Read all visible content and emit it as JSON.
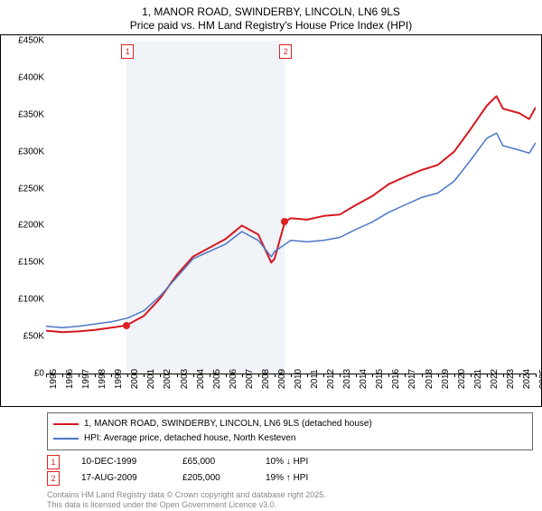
{
  "title_line1": "1, MANOR ROAD, SWINDERBY, LINCOLN, LN6 9LS",
  "title_line2": "Price paid vs. HM Land Registry's House Price Index (HPI)",
  "chart": {
    "type": "line",
    "background_color": "#ffffff",
    "shaded_bg_color": "#f0f3f8",
    "x": {
      "min": 1995,
      "max": 2025,
      "step": 1
    },
    "y": {
      "min": 0,
      "max": 450000,
      "step": 50000,
      "ticks": [
        "£0",
        "£50K",
        "£100K",
        "£150K",
        "£200K",
        "£250K",
        "£300K",
        "£350K",
        "£400K",
        "£450K"
      ]
    },
    "series": [
      {
        "name": "1, MANOR ROAD, SWINDERBY, LINCOLN, LN6 9LS (detached house)",
        "color": "#d6181f",
        "line_width": 2,
        "data": [
          [
            1995,
            58000
          ],
          [
            1996,
            56000
          ],
          [
            1997,
            57000
          ],
          [
            1998,
            59000
          ],
          [
            1999,
            62000
          ],
          [
            1999.95,
            65000
          ],
          [
            2000,
            66000
          ],
          [
            2001,
            78000
          ],
          [
            2002,
            102000
          ],
          [
            2003,
            133000
          ],
          [
            2004,
            158000
          ],
          [
            2005,
            170000
          ],
          [
            2006,
            182000
          ],
          [
            2007,
            200000
          ],
          [
            2008,
            188000
          ],
          [
            2008.8,
            150000
          ],
          [
            2009,
            155000
          ],
          [
            2009.63,
            205000
          ],
          [
            2010,
            210000
          ],
          [
            2011,
            208000
          ],
          [
            2012,
            213000
          ],
          [
            2013,
            215000
          ],
          [
            2014,
            228000
          ],
          [
            2015,
            240000
          ],
          [
            2016,
            256000
          ],
          [
            2017,
            266000
          ],
          [
            2018,
            275000
          ],
          [
            2019,
            282000
          ],
          [
            2020,
            300000
          ],
          [
            2021,
            330000
          ],
          [
            2022,
            362000
          ],
          [
            2022.6,
            375000
          ],
          [
            2023,
            358000
          ],
          [
            2024,
            352000
          ],
          [
            2024.6,
            344000
          ],
          [
            2025,
            360000
          ]
        ]
      },
      {
        "name": "HPI: Average price, detached house, North Kesteven",
        "color": "#4a77c4",
        "line_width": 1.5,
        "data": [
          [
            1995,
            64000
          ],
          [
            1996,
            62000
          ],
          [
            1997,
            64000
          ],
          [
            1998,
            67000
          ],
          [
            1999,
            70000
          ],
          [
            2000,
            75000
          ],
          [
            2001,
            85000
          ],
          [
            2002,
            105000
          ],
          [
            2003,
            130000
          ],
          [
            2004,
            155000
          ],
          [
            2005,
            165000
          ],
          [
            2006,
            175000
          ],
          [
            2007,
            192000
          ],
          [
            2008,
            180000
          ],
          [
            2008.8,
            158000
          ],
          [
            2009,
            165000
          ],
          [
            2010,
            180000
          ],
          [
            2011,
            178000
          ],
          [
            2012,
            180000
          ],
          [
            2013,
            184000
          ],
          [
            2014,
            195000
          ],
          [
            2015,
            205000
          ],
          [
            2016,
            218000
          ],
          [
            2017,
            228000
          ],
          [
            2018,
            238000
          ],
          [
            2019,
            244000
          ],
          [
            2020,
            260000
          ],
          [
            2021,
            288000
          ],
          [
            2022,
            318000
          ],
          [
            2022.6,
            325000
          ],
          [
            2023,
            308000
          ],
          [
            2024,
            302000
          ],
          [
            2024.6,
            298000
          ],
          [
            2025,
            312000
          ]
        ]
      }
    ],
    "markers": [
      {
        "n": "1",
        "x": 1999.95,
        "y": 65000
      },
      {
        "n": "2",
        "x": 2009.63,
        "y": 205000
      }
    ]
  },
  "legend": [
    {
      "color": "#d6181f",
      "label": "1, MANOR ROAD, SWINDERBY, LINCOLN, LN6 9LS (detached house)"
    },
    {
      "color": "#4a77c4",
      "label": "HPI: Average price, detached house, North Kesteven"
    }
  ],
  "transactions": [
    {
      "n": "1",
      "date": "10-DEC-1999",
      "price": "£65,000",
      "delta": "10% ↓ HPI"
    },
    {
      "n": "2",
      "date": "17-AUG-2009",
      "price": "£205,000",
      "delta": "19% ↑ HPI"
    }
  ],
  "attribution": {
    "l1": "Contains HM Land Registry data © Crown copyright and database right 2025.",
    "l2": "This data is licensed under the Open Government Licence v3.0."
  }
}
